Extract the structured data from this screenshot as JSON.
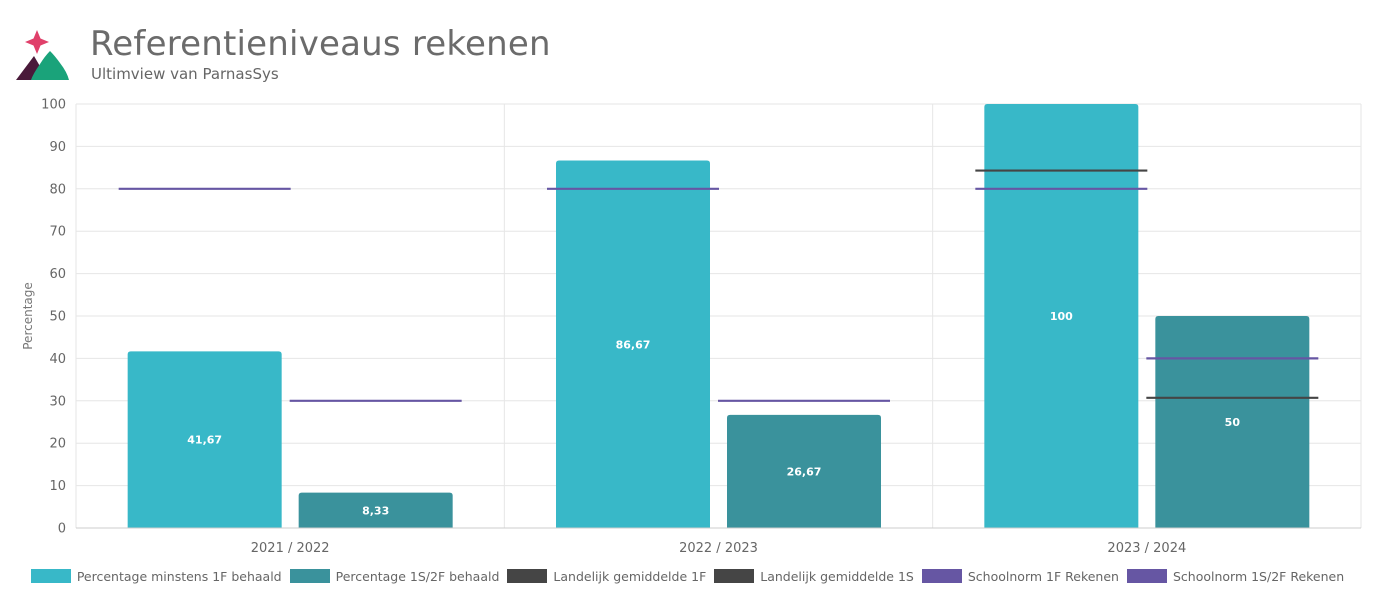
{
  "header": {
    "title": "Referentieniveaus rekenen",
    "subtitle": "Ultimview van ParnasSys"
  },
  "colors": {
    "logo_star": "#e0406a",
    "logo_dark": "#4a1a3a",
    "logo_green": "#1aa37a",
    "bar_1f": "#38b8c8",
    "bar_1s2f": "#3a929c",
    "landelijk": "#454545",
    "schoolnorm": "#6656a3",
    "grid": "#e6e6e6",
    "axis_text": "#666666"
  },
  "chart_data": {
    "type": "bar",
    "ylabel": "Percentage",
    "xlabel": "",
    "ylim": [
      0,
      100
    ],
    "yticks": [
      0,
      10,
      20,
      30,
      40,
      50,
      60,
      70,
      80,
      90,
      100
    ],
    "grid": true,
    "legend_position": "bottom",
    "categories": [
      "2021 / 2022",
      "2022 / 2023",
      "2023 / 2024"
    ],
    "series": [
      {
        "name": "Percentage minstens 1F behaald",
        "kind": "bar",
        "color": "#38b8c8",
        "values": [
          41.67,
          86.67,
          100
        ],
        "labels": [
          "41,67",
          "86,67",
          "100"
        ]
      },
      {
        "name": "Percentage 1S/2F behaald",
        "kind": "bar",
        "color": "#3a929c",
        "values": [
          8.33,
          26.67,
          50
        ],
        "labels": [
          "8,33",
          "26,67",
          "50"
        ]
      },
      {
        "name": "Landelijk gemiddelde 1F",
        "kind": "marker",
        "group": 0,
        "color": "#454545",
        "values": [
          null,
          null,
          84.3
        ]
      },
      {
        "name": "Landelijk gemiddelde 1S",
        "kind": "marker",
        "group": 1,
        "color": "#454545",
        "values": [
          null,
          null,
          30.7
        ]
      },
      {
        "name": "Schoolnorm 1F Rekenen",
        "kind": "marker",
        "group": 0,
        "color": "#6656a3",
        "values": [
          80,
          80,
          80
        ]
      },
      {
        "name": "Schoolnorm 1S/2F Rekenen",
        "kind": "marker",
        "group": 1,
        "color": "#6656a3",
        "values": [
          30,
          30,
          40
        ]
      }
    ]
  }
}
